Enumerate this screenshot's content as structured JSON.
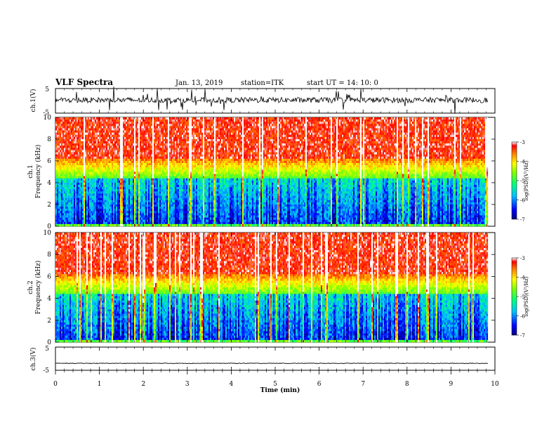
{
  "header": {
    "title": "VLF Spectra",
    "date": "Jan. 13, 2019",
    "station": "station=ITK",
    "start_ut": "start UT =  14: 10: 0"
  },
  "chart_data": [
    {
      "type": "line",
      "panel": "ch1-waveform",
      "ylabel": "ch.1(V)",
      "yticks": [
        "5",
        "-5"
      ],
      "ylim": [
        -5,
        5
      ],
      "xlim": [
        0,
        10
      ],
      "color": "#000000"
    },
    {
      "type": "heatmap",
      "panel": "ch1-spectrogram",
      "ylabel": "ch.1\nFrequency (kHz)",
      "ylabel_lines": [
        "ch.1",
        "Frequency (kHz)"
      ],
      "yticks": [
        "0",
        "2",
        "4",
        "6",
        "8",
        "10"
      ],
      "ylim": [
        0,
        10
      ],
      "xlim": [
        0,
        9.85
      ],
      "colorbar": {
        "label": "log(PSD)(V²/Hz)",
        "ticks": [
          "-3",
          "-4",
          "-5",
          "-6",
          "-7"
        ],
        "range": [
          -7,
          -3
        ]
      }
    },
    {
      "type": "heatmap",
      "panel": "ch2-spectrogram",
      "ylabel_lines": [
        "ch.2",
        "Frequency (kHz)"
      ],
      "yticks": [
        "0",
        "2",
        "4",
        "6",
        "8",
        "10"
      ],
      "ylim": [
        0,
        10
      ],
      "xlim": [
        0,
        9.85
      ],
      "colorbar": {
        "label": "log(PSD)(V²/Hz)",
        "ticks": [
          "-3",
          "-4",
          "-5",
          "-6",
          "-7"
        ],
        "range": [
          -7,
          -3
        ]
      }
    },
    {
      "type": "line",
      "panel": "ch3-waveform",
      "ylabel": "ch.3(V)",
      "yticks": [
        "5",
        "-5"
      ],
      "ylim": [
        -5,
        5
      ],
      "xlim": [
        0,
        10
      ],
      "level": -2,
      "color": "#000000"
    }
  ],
  "xaxis": {
    "label": "Time (min)",
    "ticks": [
      "0",
      "1",
      "2",
      "3",
      "4",
      "5",
      "6",
      "7",
      "8",
      "9",
      "10"
    ],
    "range": [
      0,
      10
    ]
  }
}
